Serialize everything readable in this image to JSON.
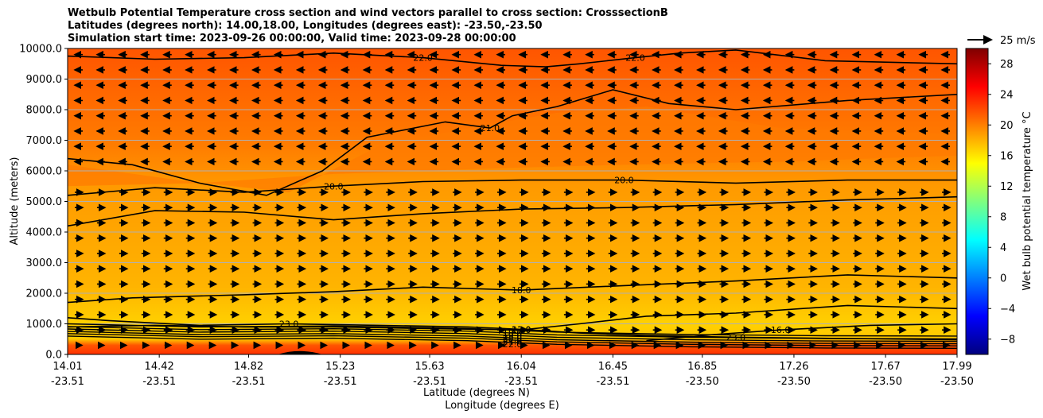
{
  "title_lines": [
    "Wetbulb Potential Temperature cross section and wind vectors parallel to cross section: CrosssectionB",
    "Latitudes (degrees north): 14.00,18.00, Longitudes (degrees east): -23.50,-23.50",
    "Simulation start time: 2023-09-26 00:00:00, Valid time: 2023-09-28 00:00:00"
  ],
  "chart_data": {
    "type": "heatmap",
    "subtype": "filled-contour cross section with contour lines and wind vectors",
    "ylabel": "Altitude (meters)",
    "xlabel_lines": [
      "Latitude (degrees N)",
      "Longitude (degrees E)"
    ],
    "ylim": [
      0,
      10000
    ],
    "y_ticks": [
      "0.0",
      "1000.0",
      "2000.0",
      "3000.0",
      "4000.0",
      "5000.0",
      "6000.0",
      "7000.0",
      "8000.0",
      "9000.0",
      "10000.0"
    ],
    "y_tick_values": [
      0,
      1000,
      2000,
      3000,
      4000,
      5000,
      6000,
      7000,
      8000,
      9000,
      10000
    ],
    "grid": "horizontal",
    "x_ticks": [
      {
        "lat": "14.01",
        "lon": "-23.51"
      },
      {
        "lat": "14.42",
        "lon": "-23.51"
      },
      {
        "lat": "14.82",
        "lon": "-23.51"
      },
      {
        "lat": "15.23",
        "lon": "-23.51"
      },
      {
        "lat": "15.63",
        "lon": "-23.51"
      },
      {
        "lat": "16.04",
        "lon": "-23.51"
      },
      {
        "lat": "16.45",
        "lon": "-23.51"
      },
      {
        "lat": "16.85",
        "lon": "-23.50"
      },
      {
        "lat": "17.26",
        "lon": "-23.50"
      },
      {
        "lat": "17.67",
        "lon": "-23.50"
      },
      {
        "lat": "17.99",
        "lon": "-23.50"
      }
    ],
    "colorbar": {
      "label": "Wet bulb potential temperature $^\\circ$C",
      "range": [
        -10,
        30
      ],
      "ticks": [
        "−8",
        "−4",
        "0",
        "4",
        "8",
        "12",
        "16",
        "20",
        "24",
        "28"
      ],
      "tick_values": [
        -8,
        -4,
        0,
        4,
        8,
        12,
        16,
        20,
        24,
        28
      ],
      "colormap": "jet",
      "colors": [
        "#00007f",
        "#0000ff",
        "#007fff",
        "#00ffff",
        "#7fff7f",
        "#ffff00",
        "#ff7f00",
        "#ff0000",
        "#7f0000"
      ]
    },
    "quiver_key": {
      "label": "25 m/s",
      "value": 25
    },
    "background_field_colors": {
      "upper": "#ff5a00",
      "mid": "#ff9600",
      "low": "#ffcc00",
      "surface": "#ff3300"
    },
    "contours": [
      {
        "level": 23.0,
        "labels": [
          "23.0",
          "23.0",
          "23.0"
        ],
        "points": [
          [
            14.01,
            1200
          ],
          [
            14.2,
            1100
          ],
          [
            14.6,
            950
          ],
          [
            15.0,
            1000
          ],
          [
            15.4,
            950
          ],
          [
            15.8,
            900
          ],
          [
            16.04,
            820
          ],
          [
            16.3,
            700
          ],
          [
            16.6,
            620
          ],
          [
            17.0,
            560
          ],
          [
            17.5,
            520
          ],
          [
            17.99,
            480
          ]
        ]
      },
      {
        "level": 22.0,
        "labels": [
          "22.0",
          "22.0"
        ],
        "points": [
          [
            14.01,
            9750
          ],
          [
            14.4,
            9650
          ],
          [
            14.8,
            9700
          ],
          [
            15.2,
            9850
          ],
          [
            15.6,
            9700
          ],
          [
            15.95,
            9450
          ],
          [
            16.15,
            9400
          ],
          [
            16.3,
            9500
          ],
          [
            16.55,
            9700
          ],
          [
            16.75,
            9850
          ],
          [
            17.0,
            9950
          ],
          [
            17.4,
            9600
          ],
          [
            17.99,
            9500
          ]
        ]
      },
      {
        "level": 21.0,
        "labels": [
          "21.0"
        ],
        "points": [
          [
            14.01,
            6400
          ],
          [
            14.3,
            6200
          ],
          [
            14.6,
            5600
          ],
          [
            14.9,
            5200
          ],
          [
            15.15,
            6000
          ],
          [
            15.35,
            7100
          ],
          [
            15.7,
            7600
          ],
          [
            15.9,
            7400
          ],
          [
            16.0,
            7800
          ],
          [
            16.2,
            8100
          ],
          [
            16.45,
            8650
          ],
          [
            16.7,
            8200
          ],
          [
            17.0,
            8000
          ],
          [
            17.5,
            8300
          ],
          [
            17.99,
            8500
          ]
        ]
      },
      {
        "level": 20.0,
        "labels": [
          "20.0",
          "20.0"
        ],
        "points": [
          [
            14.01,
            5200
          ],
          [
            14.4,
            5450
          ],
          [
            14.8,
            5300
          ],
          [
            15.2,
            5500
          ],
          [
            15.6,
            5650
          ],
          [
            16.04,
            5700
          ],
          [
            16.5,
            5700
          ],
          [
            17.0,
            5600
          ],
          [
            17.5,
            5700
          ],
          [
            17.99,
            5700
          ]
        ]
      },
      {
        "level": 19.0,
        "labels": [],
        "points": [
          [
            14.01,
            4200
          ],
          [
            14.4,
            4700
          ],
          [
            14.8,
            4650
          ],
          [
            15.2,
            4400
          ],
          [
            15.6,
            4600
          ],
          [
            16.04,
            4750
          ],
          [
            16.5,
            4800
          ],
          [
            17.0,
            4900
          ],
          [
            17.5,
            5050
          ],
          [
            17.99,
            5150
          ]
        ]
      },
      {
        "level": 18.0,
        "labels": [
          "18.0"
        ],
        "points": [
          [
            14.01,
            1700
          ],
          [
            14.3,
            1850
          ],
          [
            14.8,
            1950
          ],
          [
            15.2,
            2050
          ],
          [
            15.6,
            2200
          ],
          [
            16.04,
            2100
          ],
          [
            16.5,
            2250
          ],
          [
            17.0,
            2400
          ],
          [
            17.5,
            2600
          ],
          [
            17.99,
            2500
          ]
        ]
      },
      {
        "level": 17.0,
        "labels": [
          "17.0"
        ],
        "points": [
          [
            14.01,
            900
          ],
          [
            14.4,
            950
          ],
          [
            14.8,
            900
          ],
          [
            15.2,
            900
          ],
          [
            15.6,
            850
          ],
          [
            16.04,
            800
          ],
          [
            16.3,
            1000
          ],
          [
            16.6,
            1250
          ],
          [
            17.0,
            1350
          ],
          [
            17.5,
            1600
          ],
          [
            17.99,
            1500
          ]
        ]
      },
      {
        "level": 16.0,
        "labels": [
          "16.0"
        ],
        "points": [
          [
            16.6,
            450
          ],
          [
            16.9,
            650
          ],
          [
            17.2,
            800
          ],
          [
            17.6,
            950
          ],
          [
            17.99,
            1000
          ]
        ]
      }
    ],
    "low_level_labels": [
      "18.0",
      "19.0",
      "20.0",
      "21.0",
      "22.0"
    ],
    "wind_vectors": {
      "description": "Arrows point west (toward 14.01) above about 6000 m and east (toward 17.99) below about 5500 m; vectors are sparse or near-zero in 5500-6500 m and below 500 m.",
      "level_rows_m": [
        300,
        800,
        1300,
        1800,
        2300,
        2800,
        3300,
        3800,
        4300,
        4800,
        5300,
        5800,
        6300,
        6800,
        7300,
        7800,
        8300,
        8800,
        9300,
        9800
      ]
    }
  }
}
